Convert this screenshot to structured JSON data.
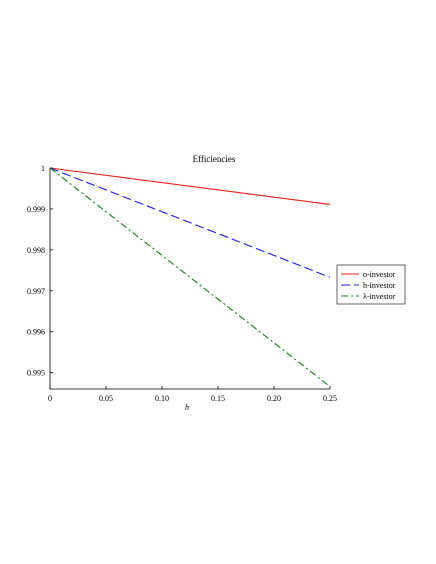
{
  "chart_data": {
    "type": "line",
    "title": "Efficiencies",
    "xlabel": "h",
    "ylabel": "",
    "xlim": [
      0,
      0.25
    ],
    "ylim": [
      0.9946,
      1.0
    ],
    "x_ticks": [
      0,
      0.05,
      0.1,
      0.15,
      0.2,
      0.25
    ],
    "x_tick_labels": [
      "0",
      "0.05",
      "0.10",
      "0.15",
      "0.20",
      "0.25"
    ],
    "y_ticks": [
      0.995,
      0.996,
      0.997,
      0.998,
      0.999,
      1.0
    ],
    "y_tick_labels": [
      "0.995",
      "0.996",
      "0.997",
      "0.998",
      "0.999",
      "1"
    ],
    "grid": false,
    "legend_position": "right",
    "series": [
      {
        "name": "o-investor",
        "color": "#e8231c",
        "style": "solid",
        "x": [
          0,
          0.25
        ],
        "y": [
          1.0,
          0.99911
        ]
      },
      {
        "name": "h-investor",
        "color": "#1f1fe0",
        "style": "dashed",
        "x": [
          0,
          0.25
        ],
        "y": [
          1.0,
          0.99733
        ]
      },
      {
        "name": "λ-investor",
        "color": "#1e7a1e",
        "style": "dashdot",
        "x": [
          0,
          0.25
        ],
        "y": [
          1.0,
          0.99466
        ]
      }
    ]
  }
}
